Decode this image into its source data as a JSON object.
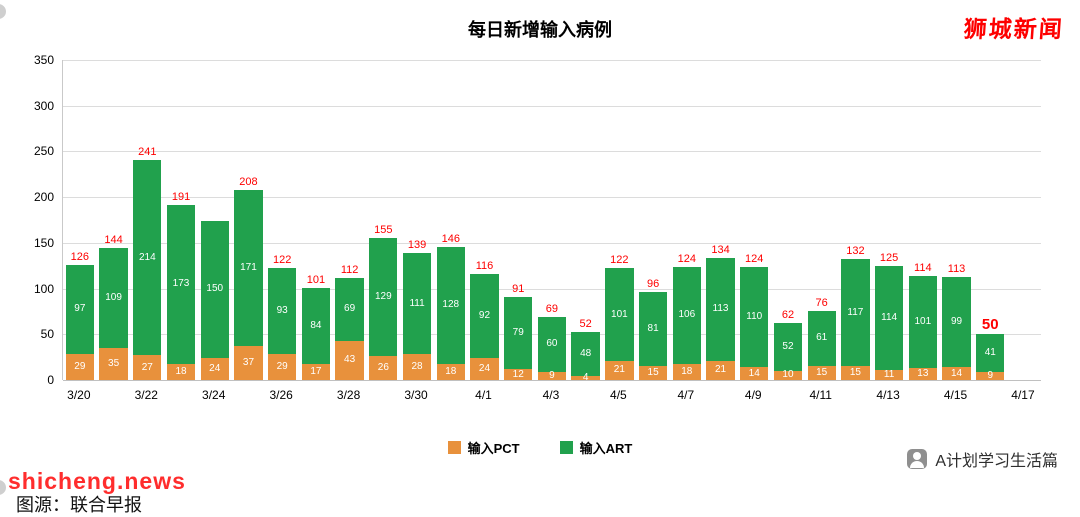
{
  "watermarks": {
    "top_right": "狮城新闻",
    "bottom_left": "shicheng.news",
    "source": "图源：联合早报",
    "bottom_right": "A计划学习生活篇"
  },
  "colors": {
    "pct": "#E8913C",
    "art": "#21A14D",
    "total_label": "#FE0000"
  },
  "y_ticks": [
    0,
    50,
    100,
    150,
    200,
    250,
    300,
    350
  ],
  "chart_data": {
    "type": "bar",
    "stacked": true,
    "title": "每日新增输入病例",
    "xlabel": "",
    "ylabel": "",
    "ylim": [
      0,
      350
    ],
    "grid": true,
    "legend_position": "bottom",
    "x_tick_labels": [
      "3/20",
      "3/22",
      "3/24",
      "3/26",
      "3/28",
      "3/30",
      "4/1",
      "4/3",
      "4/5",
      "4/7",
      "4/9",
      "4/11",
      "4/13",
      "4/15",
      "4/17"
    ],
    "categories": [
      "3/20",
      "3/21",
      "3/22",
      "3/23",
      "3/24",
      "3/25",
      "3/26",
      "3/27",
      "3/28",
      "3/29",
      "3/30",
      "3/31",
      "4/1",
      "4/2",
      "4/3",
      "4/4",
      "4/5",
      "4/6",
      "4/7",
      "4/8",
      "4/9",
      "4/10",
      "4/11",
      "4/12",
      "4/13",
      "4/14",
      "4/15",
      "4/16"
    ],
    "series": [
      {
        "name": "输入PCT",
        "color": "#E8913C",
        "values": [
          29,
          35,
          27,
          18,
          24,
          37,
          29,
          17,
          43,
          26,
          28,
          18,
          24,
          12,
          9,
          4,
          21,
          15,
          18,
          21,
          14,
          10,
          15,
          15,
          11,
          13,
          14,
          9
        ]
      },
      {
        "name": "输入ART",
        "color": "#21A14D",
        "values": [
          97,
          109,
          214,
          173,
          150,
          171,
          93,
          84,
          69,
          129,
          111,
          128,
          92,
          79,
          60,
          48,
          101,
          81,
          106,
          113,
          110,
          52,
          61,
          117,
          114,
          101,
          99,
          41
        ]
      }
    ],
    "totals": [
      126,
      144,
      241,
      191,
      174,
      208,
      122,
      101,
      112,
      155,
      139,
      146,
      116,
      91,
      69,
      52,
      122,
      96,
      124,
      134,
      124,
      62,
      76,
      132,
      125,
      114,
      113,
      50
    ],
    "total_labels": [
      "126",
      "144",
      "241",
      "191",
      "",
      "208",
      "122",
      "101",
      "112",
      "155",
      "139",
      "146",
      "116",
      "91",
      "69",
      "52",
      "122",
      "96",
      "124",
      "134",
      "124",
      "62",
      "76",
      "132",
      "125",
      "114",
      "113",
      "50"
    ]
  }
}
